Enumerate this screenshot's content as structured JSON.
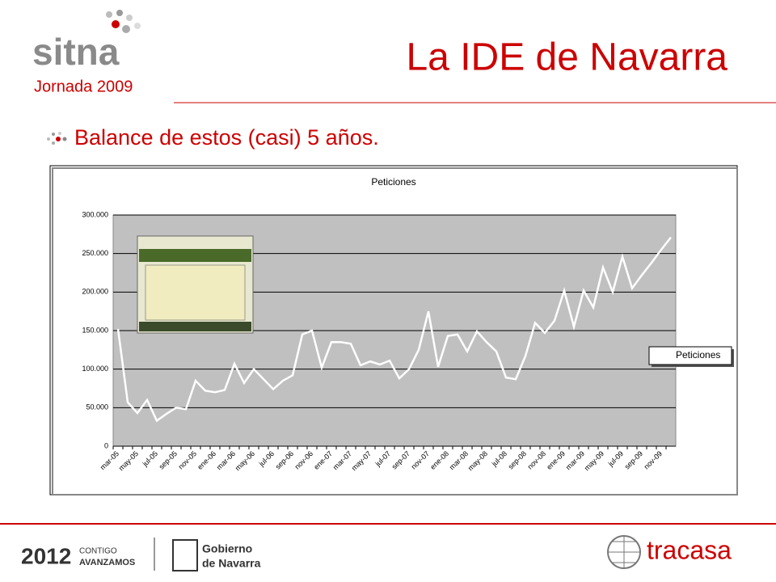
{
  "logo": {
    "name": "sitna",
    "event": "Jornada 2009"
  },
  "slide_title": "La IDE de Navarra",
  "bullet": "Balance de estos (casi) 5 años.",
  "footer": {
    "year": "2012",
    "slogan_1": "CONTIGO",
    "slogan_2": "AVANZAMOS",
    "gov_1": "Gobierno",
    "gov_2": "de Navarra",
    "company": "tracasa"
  },
  "chart_data": {
    "type": "line",
    "title": "Peticiones",
    "categories": [
      "mar-05",
      null,
      "may-05",
      null,
      "jul-05",
      null,
      "sep-05",
      null,
      "nov-05",
      null,
      "ene-06",
      null,
      "mar-06",
      null,
      "may-06",
      null,
      "jul-06",
      null,
      "sep-06",
      null,
      "nov-06",
      null,
      "ene-07",
      null,
      "mar-07",
      null,
      "may-07",
      null,
      "jul-07",
      null,
      "sep-07",
      null,
      "nov-07",
      null,
      "ene-08",
      null,
      "mar-08",
      null,
      "may-08",
      null,
      "jul-08",
      null,
      "sep-08",
      null,
      "nov-08",
      null,
      "ene-09",
      null,
      "mar-09",
      null,
      "may-09",
      null,
      "jul-09",
      null,
      "sep-09",
      null,
      "nov-09",
      null
    ],
    "series": [
      {
        "name": "Peticiones",
        "color": "#ffffff",
        "values": [
          152000,
          57000,
          43000,
          60000,
          33000,
          42000,
          50000,
          48000,
          85000,
          72000,
          70000,
          73000,
          107000,
          82000,
          100000,
          87000,
          74000,
          85000,
          92000,
          145000,
          150000,
          102000,
          135000,
          135000,
          133000,
          105000,
          110000,
          106000,
          111000,
          88000,
          100000,
          125000,
          175000,
          103000,
          143000,
          145000,
          123000,
          149000,
          135000,
          123000,
          89000,
          87000,
          117000,
          160000,
          147000,
          163000,
          202000,
          155000,
          202000,
          180000,
          232000,
          200000,
          246000,
          205000,
          222000,
          238000,
          255000,
          271000
        ]
      }
    ],
    "ylim": [
      0,
      300000
    ],
    "yticks": [
      0,
      {
        "value": 50000,
        "label": "50.000"
      },
      {
        "value": 100000,
        "label": "100.000"
      },
      {
        "value": 150000,
        "label": "150.000"
      },
      {
        "value": 200000,
        "label": "200.000"
      },
      {
        "value": 250000,
        "label": "250.000"
      },
      {
        "value": 300000,
        "label": "300.000"
      }
    ],
    "grid": true,
    "legend": "right",
    "plot_background": "#c0c0c0"
  }
}
